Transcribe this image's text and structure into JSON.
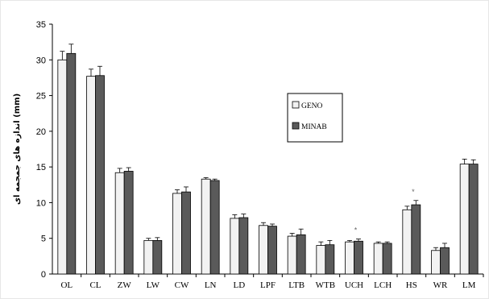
{
  "chart_data": {
    "type": "bar",
    "ylabel": "اندازه های جمجمه ای (mm)",
    "ylim": [
      0,
      35
    ],
    "yticks": [
      0,
      5,
      10,
      15,
      20,
      25,
      30,
      35
    ],
    "categories": [
      "OL",
      "CL",
      "ZW",
      "LW",
      "CW",
      "LN",
      "LD",
      "LPF",
      "LTB",
      "WTB",
      "UCH",
      "LCH",
      "HS",
      "WR",
      "LM"
    ],
    "series": [
      {
        "name": "GENO",
        "color": "#f2f2f2",
        "values": [
          30.0,
          27.7,
          14.2,
          4.7,
          11.3,
          13.3,
          7.8,
          6.8,
          5.3,
          4.0,
          4.5,
          4.3,
          9.0,
          3.3,
          15.4
        ],
        "errors": [
          1.2,
          1.0,
          0.6,
          0.3,
          0.5,
          0.2,
          0.5,
          0.4,
          0.4,
          0.5,
          0.2,
          0.2,
          0.5,
          0.4,
          0.7
        ]
      },
      {
        "name": "MINAB",
        "color": "#5a5a5a",
        "values": [
          30.9,
          27.8,
          14.4,
          4.7,
          11.5,
          13.1,
          7.9,
          6.7,
          5.5,
          4.1,
          4.6,
          4.3,
          9.7,
          3.7,
          15.4
        ],
        "errors": [
          1.3,
          1.3,
          0.5,
          0.4,
          0.7,
          0.2,
          0.5,
          0.3,
          0.8,
          0.6,
          0.3,
          0.2,
          0.6,
          0.6,
          0.6
        ]
      }
    ],
    "significant_marks": [
      {
        "category": "UCH",
        "symbol": "*"
      },
      {
        "category": "HS",
        "symbol": "*"
      }
    ],
    "legend": {
      "position": "inside-right",
      "entries": [
        "GENO",
        "MINAB"
      ]
    },
    "grid": false
  }
}
